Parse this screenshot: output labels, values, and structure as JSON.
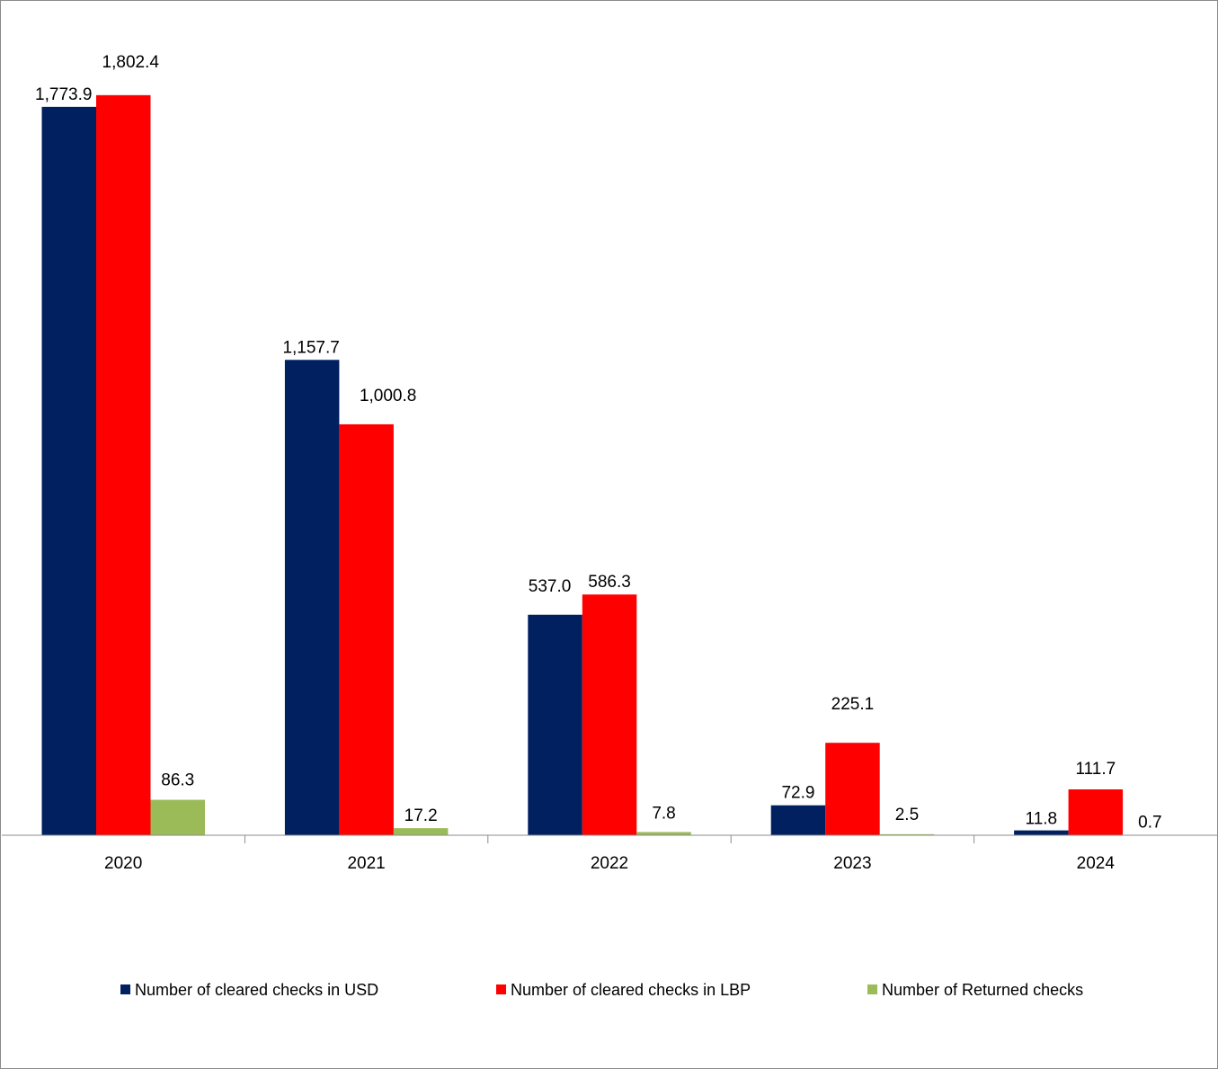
{
  "chart_data": {
    "type": "bar",
    "categories": [
      "2020",
      "2021",
      "2022",
      "2023",
      "2024"
    ],
    "series": [
      {
        "name": "Number of cleared checks in USD",
        "color": "#002060",
        "values": [
          1773.9,
          1157.7,
          537.0,
          72.9,
          11.8
        ],
        "labels": [
          "1,773.9",
          "1,157.7",
          "537.0",
          "72.9",
          "11.8"
        ]
      },
      {
        "name": "Number of cleared checks in LBP",
        "color": "#ff0000",
        "values": [
          1802.4,
          1000.8,
          586.3,
          225.1,
          111.7
        ],
        "labels": [
          "1,802.4",
          "1,000.8",
          "586.3",
          "225.1",
          "111.7"
        ]
      },
      {
        "name": "Number of Returned checks",
        "color": "#9bbb59",
        "values": [
          86.3,
          17.2,
          7.8,
          2.5,
          0.7
        ],
        "labels": [
          "86.3",
          "17.2",
          "7.8",
          "2.5",
          "0.7"
        ]
      }
    ],
    "title": "",
    "xlabel": "",
    "ylabel": "",
    "ylim": [
      0,
      2000
    ],
    "grid": false,
    "legend_position": "bottom"
  }
}
